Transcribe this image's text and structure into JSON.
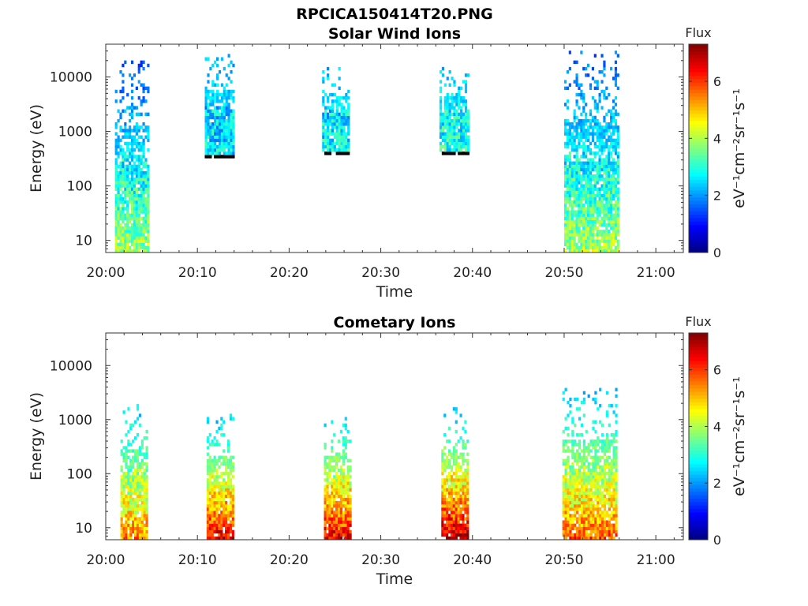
{
  "figure": {
    "title": "RPCICA150414T20.PNG"
  },
  "chart_data": [
    {
      "type": "heatmap",
      "title": "Solar Wind Ions",
      "xlabel": "Time",
      "ylabel": "Energy (eV)",
      "x_ticks": [
        "20:00",
        "20:10",
        "20:20",
        "20:30",
        "20:40",
        "20:50",
        "21:00"
      ],
      "xlim": [
        "20:00",
        "21:03"
      ],
      "y_scale": "log",
      "y_ticks": [
        10,
        100,
        1000,
        10000
      ],
      "y_tick_labels": [
        "10",
        "100",
        "1000",
        "10000"
      ],
      "ylim": [
        6,
        40000
      ],
      "colorbar": {
        "title": "Flux",
        "label": "eV⁻¹cm⁻²sr⁻¹s⁻¹",
        "range": [
          0,
          7.3
        ],
        "ticks": [
          0,
          2,
          4,
          6
        ],
        "colormap": "jet"
      },
      "bursts": [
        {
          "start": "20:01",
          "end": "20:04.7",
          "emin": 6,
          "emax": 20000,
          "flux_high_e": 1.5,
          "flux_low_e": 4.0
        },
        {
          "start": "20:10.8",
          "end": "20:14",
          "emin": 330,
          "emax": 25000,
          "flux_high_e": 2.3,
          "flux_low_e": 2.6
        },
        {
          "start": "20:23.6",
          "end": "20:26.5",
          "emin": 420,
          "emax": 15000,
          "flux_high_e": 2.3,
          "flux_low_e": 2.8
        },
        {
          "start": "20:36.4",
          "end": "20:39.5",
          "emin": 380,
          "emax": 15000,
          "flux_high_e": 2.3,
          "flux_low_e": 3.0
        },
        {
          "start": "20:50",
          "end": "20:55.8",
          "emin": 6,
          "emax": 30000,
          "flux_high_e": 1.6,
          "flux_low_e": 4.0
        }
      ]
    },
    {
      "type": "heatmap",
      "title": "Cometary Ions",
      "xlabel": "Time",
      "ylabel": "Energy (eV)",
      "x_ticks": [
        "20:00",
        "20:10",
        "20:20",
        "20:30",
        "20:40",
        "20:50",
        "21:00"
      ],
      "xlim": [
        "20:00",
        "21:03"
      ],
      "y_scale": "log",
      "y_ticks": [
        10,
        100,
        1000,
        10000
      ],
      "y_tick_labels": [
        "10",
        "100",
        "1000",
        "10000"
      ],
      "ylim": [
        6,
        40000
      ],
      "colorbar": {
        "title": "Flux",
        "label": "eV⁻¹cm⁻²sr⁻¹s⁻¹",
        "range": [
          0,
          7.3
        ],
        "ticks": [
          0,
          2,
          4,
          6
        ],
        "colormap": "jet"
      },
      "bursts": [
        {
          "start": "20:01.6",
          "end": "20:04.5",
          "emin": 6,
          "emax": 2000,
          "flux_high_e": 2.3,
          "flux_low_e": 5.5
        },
        {
          "start": "20:11",
          "end": "20:14",
          "emin": 6,
          "emax": 1200,
          "flux_high_e": 2.3,
          "flux_low_e": 6.6
        },
        {
          "start": "20:23.8",
          "end": "20:26.6",
          "emin": 6,
          "emax": 1200,
          "flux_high_e": 2.3,
          "flux_low_e": 6.6
        },
        {
          "start": "20:36.6",
          "end": "20:39.6",
          "emin": 6,
          "emax": 1500,
          "flux_high_e": 2.3,
          "flux_low_e": 7.0
        },
        {
          "start": "20:49.8",
          "end": "20:55.8",
          "emin": 6,
          "emax": 3500,
          "flux_high_e": 2.3,
          "flux_low_e": 5.8
        }
      ]
    }
  ]
}
